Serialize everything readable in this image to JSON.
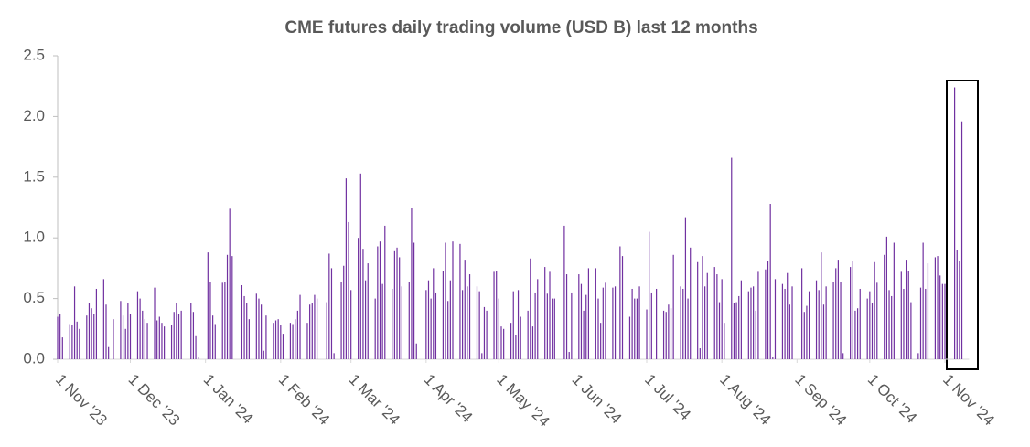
{
  "chart_data": {
    "type": "bar",
    "title": "CME futures daily trading volume (USD B) last 12 months",
    "x": [
      "2023-11-01",
      "2023-11-02",
      "2023-11-03",
      "2023-11-06",
      "2023-11-07",
      "2023-11-08",
      "2023-11-09",
      "2023-11-10",
      "2023-11-13",
      "2023-11-14",
      "2023-11-15",
      "2023-11-16",
      "2023-11-17",
      "2023-11-20",
      "2023-11-21",
      "2023-11-22",
      "2023-11-24",
      "2023-11-27",
      "2023-11-28",
      "2023-11-29",
      "2023-11-30",
      "2023-12-01",
      "2023-12-04",
      "2023-12-05",
      "2023-12-06",
      "2023-12-07",
      "2023-12-08",
      "2023-12-11",
      "2023-12-12",
      "2023-12-13",
      "2023-12-14",
      "2023-12-15",
      "2023-12-18",
      "2023-12-19",
      "2023-12-20",
      "2023-12-21",
      "2023-12-22",
      "2023-12-26",
      "2023-12-27",
      "2023-12-28",
      "2023-12-29",
      "2024-01-02",
      "2024-01-03",
      "2024-01-04",
      "2024-01-05",
      "2024-01-08",
      "2024-01-09",
      "2024-01-10",
      "2024-01-11",
      "2024-01-12",
      "2024-01-16",
      "2024-01-17",
      "2024-01-18",
      "2024-01-19",
      "2024-01-22",
      "2024-01-23",
      "2024-01-24",
      "2024-01-25",
      "2024-01-26",
      "2024-01-29",
      "2024-01-30",
      "2024-01-31",
      "2024-02-01",
      "2024-02-02",
      "2024-02-05",
      "2024-02-06",
      "2024-02-07",
      "2024-02-08",
      "2024-02-09",
      "2024-02-12",
      "2024-02-13",
      "2024-02-14",
      "2024-02-15",
      "2024-02-16",
      "2024-02-20",
      "2024-02-21",
      "2024-02-22",
      "2024-02-23",
      "2024-02-26",
      "2024-02-27",
      "2024-02-28",
      "2024-02-29",
      "2024-03-01",
      "2024-03-04",
      "2024-03-05",
      "2024-03-06",
      "2024-03-07",
      "2024-03-08",
      "2024-03-11",
      "2024-03-12",
      "2024-03-13",
      "2024-03-14",
      "2024-03-15",
      "2024-03-18",
      "2024-03-19",
      "2024-03-20",
      "2024-03-21",
      "2024-03-22",
      "2024-03-25",
      "2024-03-26",
      "2024-03-27",
      "2024-03-28",
      "2024-04-01",
      "2024-04-02",
      "2024-04-03",
      "2024-04-04",
      "2024-04-05",
      "2024-04-08",
      "2024-04-09",
      "2024-04-10",
      "2024-04-11",
      "2024-04-12",
      "2024-04-15",
      "2024-04-16",
      "2024-04-17",
      "2024-04-18",
      "2024-04-19",
      "2024-04-22",
      "2024-04-23",
      "2024-04-24",
      "2024-04-25",
      "2024-04-26",
      "2024-04-29",
      "2024-04-30",
      "2024-05-01",
      "2024-05-02",
      "2024-05-03",
      "2024-05-06",
      "2024-05-07",
      "2024-05-08",
      "2024-05-09",
      "2024-05-10",
      "2024-05-13",
      "2024-05-14",
      "2024-05-15",
      "2024-05-16",
      "2024-05-17",
      "2024-05-20",
      "2024-05-21",
      "2024-05-22",
      "2024-05-23",
      "2024-05-24",
      "2024-05-28",
      "2024-05-29",
      "2024-05-30",
      "2024-05-31",
      "2024-06-03",
      "2024-06-04",
      "2024-06-05",
      "2024-06-06",
      "2024-06-07",
      "2024-06-10",
      "2024-06-11",
      "2024-06-12",
      "2024-06-13",
      "2024-06-14",
      "2024-06-17",
      "2024-06-18",
      "2024-06-20",
      "2024-06-21",
      "2024-06-24",
      "2024-06-25",
      "2024-06-26",
      "2024-06-27",
      "2024-06-28",
      "2024-07-01",
      "2024-07-02",
      "2024-07-03",
      "2024-07-05",
      "2024-07-08",
      "2024-07-09",
      "2024-07-10",
      "2024-07-11",
      "2024-07-12",
      "2024-07-15",
      "2024-07-16",
      "2024-07-17",
      "2024-07-18",
      "2024-07-19",
      "2024-07-22",
      "2024-07-23",
      "2024-07-24",
      "2024-07-25",
      "2024-07-26",
      "2024-07-29",
      "2024-07-30",
      "2024-07-31",
      "2024-08-01",
      "2024-08-02",
      "2024-08-05",
      "2024-08-06",
      "2024-08-07",
      "2024-08-08",
      "2024-08-09",
      "2024-08-12",
      "2024-08-13",
      "2024-08-14",
      "2024-08-15",
      "2024-08-16",
      "2024-08-19",
      "2024-08-20",
      "2024-08-21",
      "2024-08-22",
      "2024-08-23",
      "2024-08-26",
      "2024-08-27",
      "2024-08-28",
      "2024-08-29",
      "2024-08-30",
      "2024-09-03",
      "2024-09-04",
      "2024-09-05",
      "2024-09-06",
      "2024-09-09",
      "2024-09-10",
      "2024-09-11",
      "2024-09-12",
      "2024-09-13",
      "2024-09-16",
      "2024-09-17",
      "2024-09-18",
      "2024-09-19",
      "2024-09-20",
      "2024-09-23",
      "2024-09-24",
      "2024-09-25",
      "2024-09-26",
      "2024-09-27",
      "2024-09-30",
      "2024-10-01",
      "2024-10-02",
      "2024-10-03",
      "2024-10-04",
      "2024-10-07",
      "2024-10-08",
      "2024-10-09",
      "2024-10-10",
      "2024-10-11",
      "2024-10-14",
      "2024-10-15",
      "2024-10-16",
      "2024-10-17",
      "2024-10-18",
      "2024-10-21",
      "2024-10-22",
      "2024-10-23",
      "2024-10-24",
      "2024-10-25",
      "2024-10-28",
      "2024-10-29",
      "2024-10-30",
      "2024-10-31",
      "2024-11-01",
      "2024-11-05",
      "2024-11-06",
      "2024-11-07",
      "2024-11-08"
    ],
    "values": [
      0.35,
      0.37,
      0.18,
      0.29,
      0.28,
      0.6,
      0.31,
      0.25,
      0.36,
      0.46,
      0.42,
      0.37,
      0.58,
      0.66,
      0.45,
      0.1,
      0.33,
      0.48,
      0.36,
      0.25,
      0.46,
      0.37,
      0.56,
      0.5,
      0.4,
      0.33,
      0.3,
      0.59,
      0.32,
      0.35,
      0.3,
      0.27,
      0.28,
      0.39,
      0.46,
      0.37,
      0.4,
      0.46,
      0.39,
      0.19,
      0.02,
      0.88,
      0.64,
      0.36,
      0.29,
      0.63,
      0.64,
      0.86,
      1.24,
      0.85,
      0.61,
      0.52,
      0.46,
      0.33,
      0.54,
      0.5,
      0.45,
      0.07,
      0.36,
      0.3,
      0.32,
      0.33,
      0.28,
      0.21,
      0.3,
      0.29,
      0.33,
      0.4,
      0.53,
      0.3,
      0.45,
      0.46,
      0.53,
      0.5,
      0.47,
      0.87,
      0.75,
      0.05,
      0.64,
      0.77,
      1.49,
      1.13,
      0.57,
      1.0,
      1.53,
      0.91,
      0.65,
      0.79,
      0.5,
      0.93,
      0.97,
      0.62,
      1.1,
      0.58,
      0.89,
      0.92,
      0.84,
      0.6,
      0.64,
      1.25,
      0.96,
      0.13,
      0.57,
      0.65,
      0.5,
      0.75,
      0.55,
      0.73,
      0.96,
      0.48,
      0.65,
      0.97,
      0.95,
      0.57,
      0.82,
      0.6,
      0.7,
      0.6,
      0.56,
      0.05,
      0.43,
      0.4,
      0.72,
      0.73,
      0.5,
      0.27,
      0.25,
      0.3,
      0.56,
      0.2,
      0.57,
      0.35,
      0.4,
      0.83,
      0.27,
      0.55,
      0.66,
      0.76,
      0.54,
      0.72,
      0.5,
      0.5,
      1.1,
      0.7,
      0.06,
      0.55,
      0.7,
      0.62,
      0.4,
      0.53,
      0.75,
      0.75,
      0.5,
      0.3,
      0.59,
      0.63,
      0.59,
      0.6,
      0.93,
      0.85,
      0.35,
      0.58,
      0.5,
      0.5,
      0.6,
      0.41,
      1.05,
      0.55,
      0.58,
      0.4,
      0.39,
      0.45,
      0.42,
      0.86,
      0.6,
      0.58,
      1.17,
      0.5,
      0.92,
      0.8,
      0.09,
      0.85,
      0.6,
      0.71,
      0.76,
      0.7,
      0.47,
      0.66,
      0.3,
      1.66,
      0.46,
      0.47,
      0.52,
      0.65,
      0.56,
      0.59,
      0.6,
      0.4,
      0.72,
      0.74,
      0.81,
      1.28,
      0.02,
      0.66,
      0.62,
      0.58,
      0.71,
      0.45,
      0.6,
      0.75,
      0.39,
      0.44,
      0.56,
      0.65,
      0.57,
      0.88,
      0.45,
      0.6,
      0.64,
      0.75,
      0.82,
      0.64,
      0.05,
      0.76,
      0.81,
      0.4,
      0.42,
      0.58,
      0.5,
      0.56,
      0.46,
      0.8,
      0.63,
      0.86,
      1.01,
      0.57,
      0.52,
      0.96,
      0.72,
      0.58,
      0.82,
      0.73,
      0.47,
      0.05,
      0.59,
      0.96,
      0.58,
      0.79,
      0.84,
      0.85,
      0.69,
      0.62,
      0.62,
      2.24,
      0.9,
      0.81,
      1.96
    ],
    "color": "#7030a0",
    "xlim": [
      "2023-11-01",
      "2024-11-11"
    ],
    "xticks": [
      {
        "value": "2023-11-01",
        "label": "1 Nov '23"
      },
      {
        "value": "2023-12-01",
        "label": "1 Dec '23"
      },
      {
        "value": "2024-01-01",
        "label": "1 Jan '24"
      },
      {
        "value": "2024-02-01",
        "label": "1 Feb '24"
      },
      {
        "value": "2024-03-01",
        "label": "1 Mar '24"
      },
      {
        "value": "2024-04-01",
        "label": "1 Apr '24"
      },
      {
        "value": "2024-05-01",
        "label": "1 May '24"
      },
      {
        "value": "2024-06-01",
        "label": "1 Jun '24"
      },
      {
        "value": "2024-07-01",
        "label": "1 Jul '24"
      },
      {
        "value": "2024-08-01",
        "label": "1 Aug '24"
      },
      {
        "value": "2024-09-01",
        "label": "1 Sep '24"
      },
      {
        "value": "2024-10-01",
        "label": "1 Oct '24"
      },
      {
        "value": "2024-11-01",
        "label": "1 Nov '24"
      }
    ],
    "ylim": [
      0,
      2.5
    ],
    "yticks": [
      {
        "value": 0,
        "label": "0.0"
      },
      0.5,
      {
        "value": 1,
        "label": "1.0"
      },
      1.5,
      {
        "value": 2,
        "label": "2.0"
      },
      2.5
    ],
    "grid": false
  }
}
